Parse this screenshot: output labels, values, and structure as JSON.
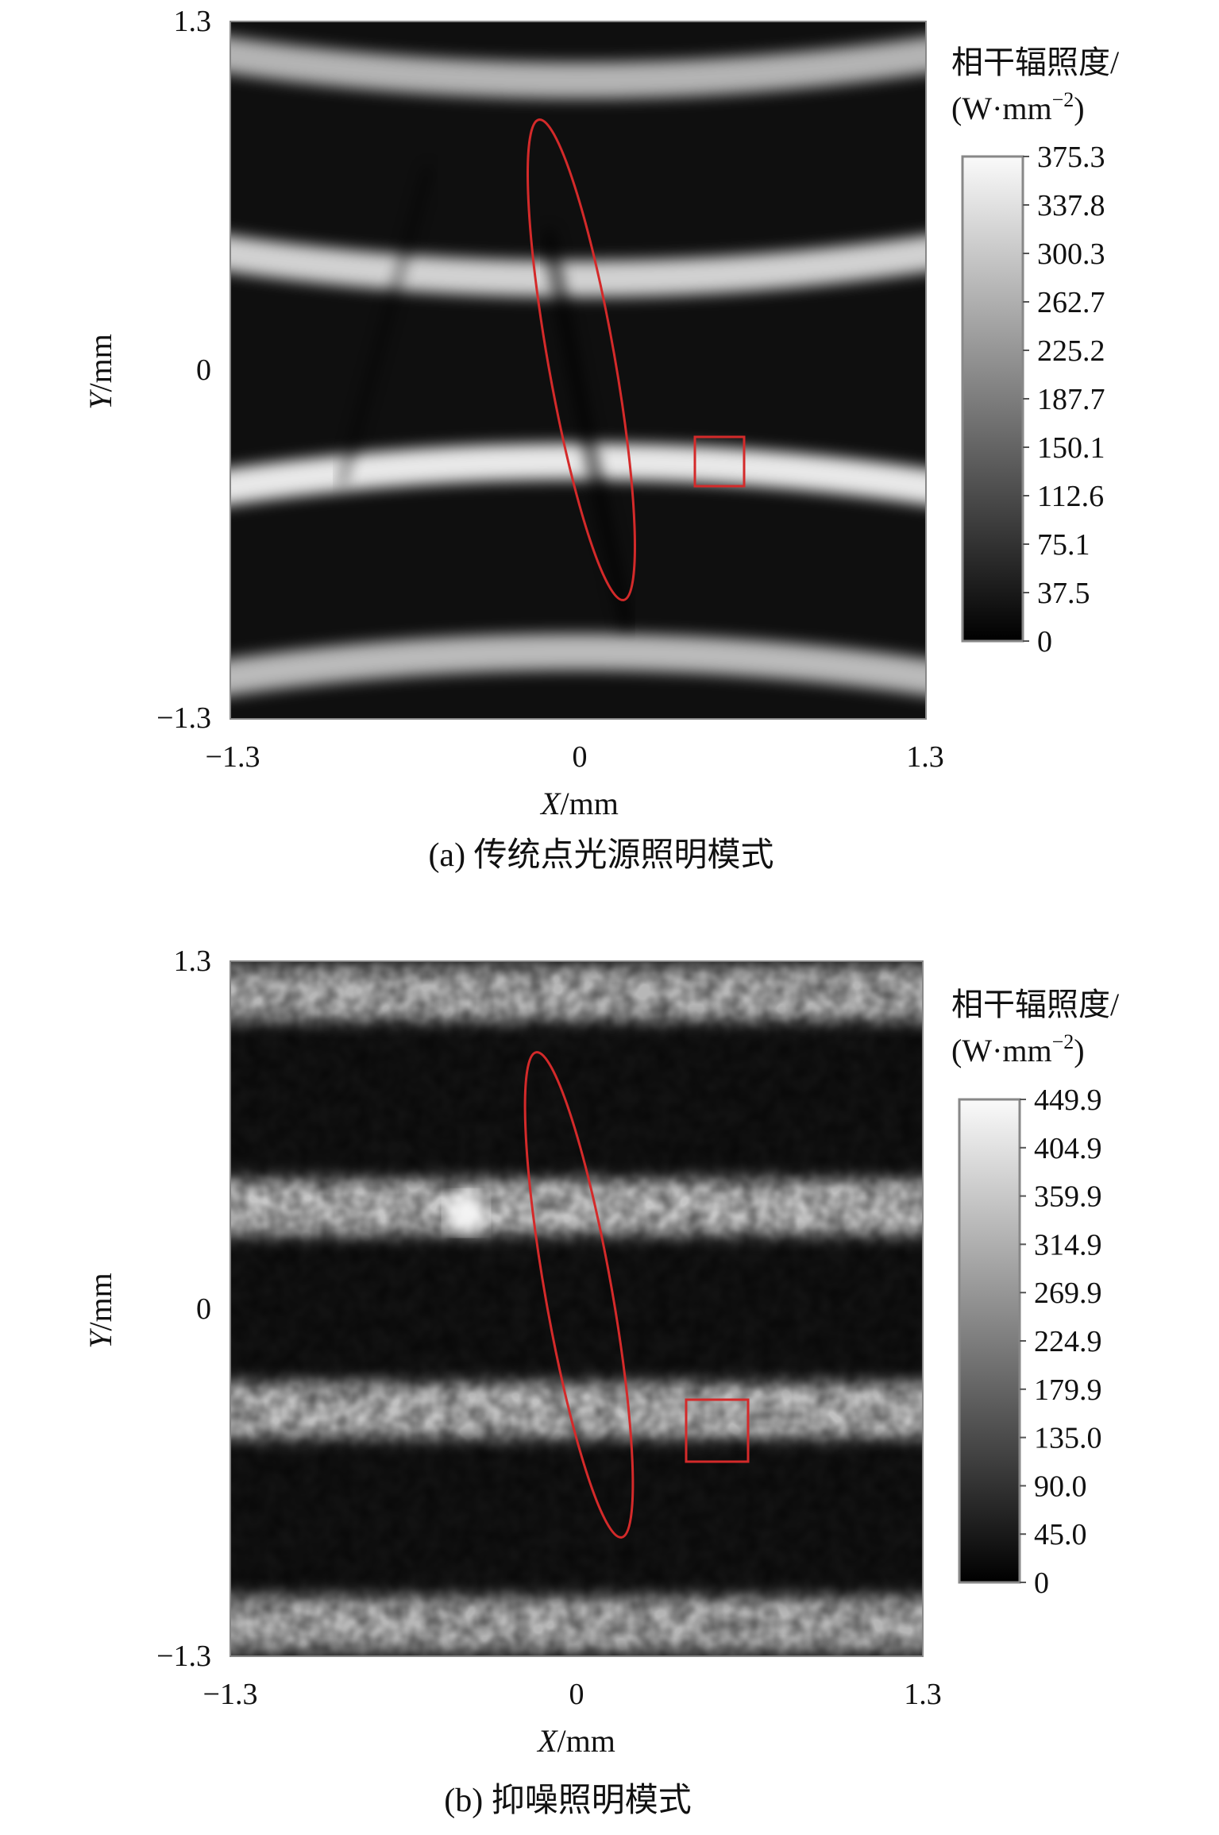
{
  "chart_data": [
    {
      "type": "heatmap",
      "caption": "(a) 传统点光源照明模式",
      "xlabel_var": "X",
      "xlabel_unit": "/mm",
      "ylabel_var": "Y",
      "ylabel_unit": "/mm",
      "xlim": [
        -1.3,
        1.3
      ],
      "ylim": [
        -1.3,
        1.3
      ],
      "x_ticks": [
        "−1.3",
        "0",
        "1.3"
      ],
      "y_ticks": [
        "1.3",
        "0",
        "−1.3"
      ],
      "colorbar_title_line1": "相干辐照度/",
      "colorbar_title_line2": "(W·mm",
      "colorbar_title_sup": "−2",
      "colorbar_title_close": ")",
      "colorbar_range": [
        0,
        375.3
      ],
      "colorbar_ticks": [
        "375.3",
        "337.8",
        "300.3",
        "262.7",
        "225.2",
        "187.7",
        "150.1",
        "112.6",
        "75.1",
        "37.5",
        "0"
      ],
      "colormap": "gray",
      "fringes_y": [
        1.08,
        0.34,
        -0.34,
        -1.05
      ],
      "fringe_peak": [
        245,
        295,
        335,
        255
      ],
      "annotation_color": "#d42a2a"
    },
    {
      "type": "heatmap",
      "caption": "(b) 抑噪照明模式",
      "xlabel_var": "X",
      "xlabel_unit": "/mm",
      "ylabel_var": "Y",
      "ylabel_unit": "/mm",
      "xlim": [
        -1.3,
        1.3
      ],
      "ylim": [
        -1.3,
        1.3
      ],
      "x_ticks": [
        "−1.3",
        "0",
        "1.3"
      ],
      "y_ticks": [
        "1.3",
        "0",
        "−1.3"
      ],
      "colorbar_title_line1": "相干辐照度/",
      "colorbar_title_line2": "(W·mm",
      "colorbar_title_sup": "−2",
      "colorbar_title_close": ")",
      "colorbar_range": [
        0,
        449.9
      ],
      "colorbar_ticks": [
        "449.9",
        "404.9",
        "359.9",
        "314.9",
        "269.9",
        "224.9",
        "179.9",
        "135.0",
        "90.0",
        "45.0",
        "0"
      ],
      "colormap": "gray",
      "fringes_y": [
        1.18,
        0.38,
        -0.38,
        -1.18
      ],
      "fringe_peak": [
        300,
        330,
        320,
        300
      ],
      "annotation_color": "#d42a2a"
    }
  ]
}
